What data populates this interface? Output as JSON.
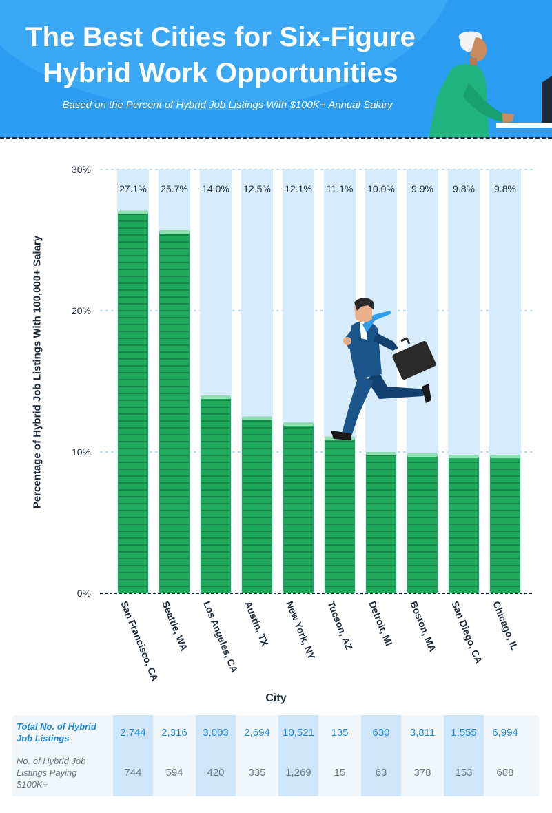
{
  "header": {
    "title_line1": "The Best Cities for Six-Figure",
    "title_line2": "Hybrid Work Opportunities",
    "subtitle": "Based on the Percent of Hybrid Job Listings With $100K+ Annual Salary"
  },
  "colors": {
    "header_bg": "#2b9cf2",
    "bar_green": "#1fa85a",
    "bar_track": "#d6ebfb",
    "axis_text": "#1d2a3a",
    "table_blue": "#1e88d8"
  },
  "chart_data": {
    "type": "bar",
    "title": "The Best Cities for Six-Figure Hybrid Work Opportunities",
    "subtitle": "Based on the Percent of Hybrid Job Listings With $100K+ Annual Salary",
    "xlabel": "City",
    "ylabel": "Percentage of Hybrid Job Listings With 100,000+ Salary",
    "ylim": [
      0,
      30
    ],
    "yticks": [
      "0%",
      "10%",
      "20%",
      "30%"
    ],
    "yticks_values": [
      0,
      10,
      20,
      30
    ],
    "grid": true,
    "categories": [
      "San Francisco, CA",
      "Seattle, WA",
      "Los Angeles, CA",
      "Austin, TX",
      "New York, NY",
      "Tucson, AZ",
      "Detroit, MI",
      "Boston, MA",
      "San Diego, CA",
      "Chicago, IL"
    ],
    "values": [
      27.1,
      25.7,
      14.0,
      12.5,
      12.1,
      11.1,
      10.0,
      9.9,
      9.8,
      9.8
    ],
    "value_labels": [
      "27.1%",
      "25.7%",
      "14.0%",
      "12.5%",
      "12.1%",
      "11.1%",
      "10.0%",
      "9.9%",
      "9.8%",
      "9.8%"
    ]
  },
  "table": {
    "row1_label": "Total No. of Hybrid Job Listings",
    "row2_label": "No. of Hybrid Job Listings Paying $100K+",
    "total_listings": [
      "2,744",
      "2,316",
      "3,003",
      "2,694",
      "10,521",
      "135",
      "630",
      "3,811",
      "1,555",
      "6,994"
    ],
    "listings_100k": [
      "744",
      "594",
      "420",
      "335",
      "1,269",
      "15",
      "63",
      "378",
      "153",
      "688"
    ]
  }
}
